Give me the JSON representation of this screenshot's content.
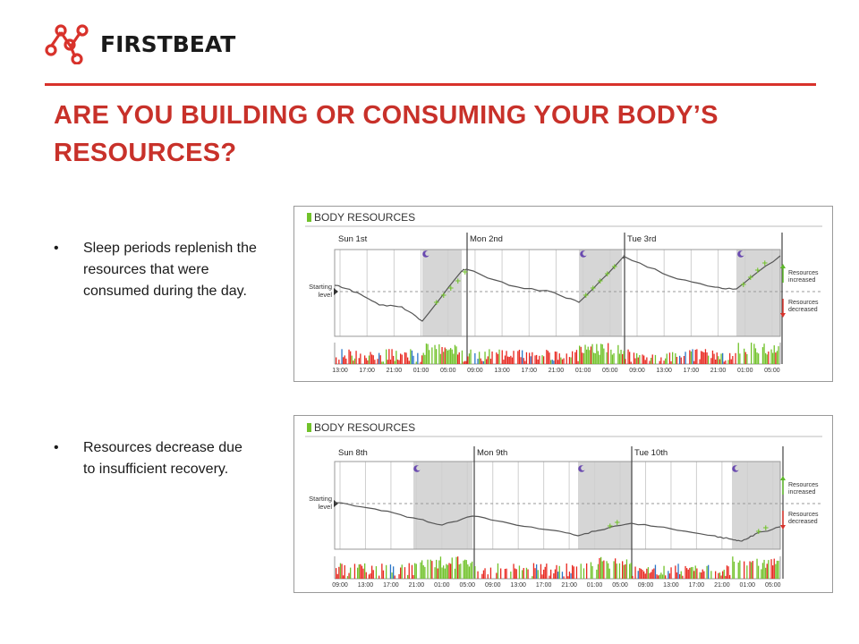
{
  "brand": {
    "name": "FIRSTBEAT",
    "accent": "#d8322b"
  },
  "title": "ARE YOU BUILDING OR CONSUMING YOUR BODY’S RESOURCES?",
  "bullets": [
    "Sleep periods replenish the resources that were consumed during the day.",
    "Resources decrease due to insufficient recovery."
  ],
  "colors": {
    "title": "#c8312a",
    "stress": "#e8271f",
    "recovery": "#71c22a",
    "activity": "#2b76c8",
    "sleep_shade": "#d6d6d6",
    "grid": "#cfcfcf"
  },
  "charts": [
    {
      "header": "BODY RESOURCES",
      "day_labels": [
        "Sun 1st",
        "Mon 2nd",
        "Tue 3rd"
      ],
      "starting_level": "Starting level",
      "legend": {
        "up": "Resources increased",
        "down": "Resources decreased"
      },
      "x_ticks": [
        "13:00",
        "17:00",
        "21:00",
        "01:00",
        "05:00",
        "09:00",
        "13:00",
        "17:00",
        "21:00",
        "01:00",
        "05:00",
        "09:00",
        "13:00",
        "17:00",
        "21:00",
        "01:00",
        "05:00"
      ],
      "icon": "sleep-moon-icon"
    },
    {
      "header": "BODY RESOURCES",
      "day_labels": [
        "Sun 8th",
        "Mon 9th",
        "Tue 10th"
      ],
      "starting_level": "Starting level",
      "legend": {
        "up": "Resources increased",
        "down": "Resources decreased"
      },
      "x_ticks": [
        "09:00",
        "13:00",
        "17:00",
        "21:00",
        "01:00",
        "05:00",
        "09:00",
        "13:00",
        "17:00",
        "21:00",
        "01:00",
        "05:00",
        "09:00",
        "13:00",
        "17:00",
        "21:00",
        "01:00",
        "05:00"
      ],
      "icon": "sleep-moon-icon"
    }
  ]
}
